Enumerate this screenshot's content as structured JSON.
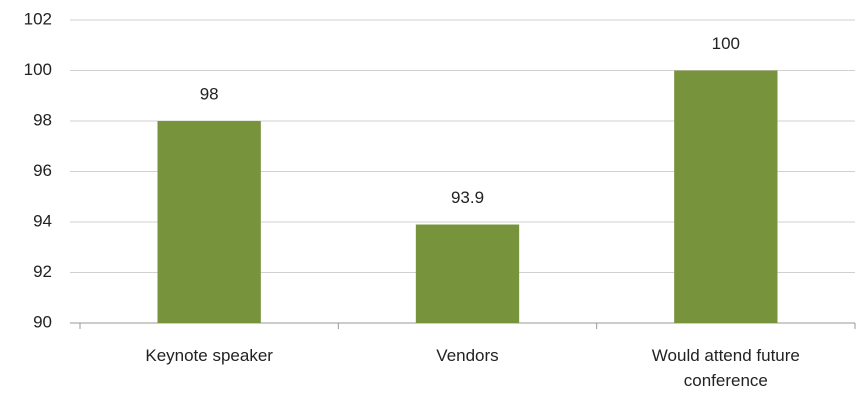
{
  "chart_data": {
    "type": "bar",
    "categories": [
      "Keynote speaker",
      "Vendors",
      "Would attend future conference"
    ],
    "values": [
      98,
      93.9,
      100
    ],
    "color": "#77933c",
    "ylim": [
      90,
      102
    ],
    "yticks": [
      90,
      92,
      94,
      96,
      98,
      100,
      102
    ],
    "grid": true
  }
}
